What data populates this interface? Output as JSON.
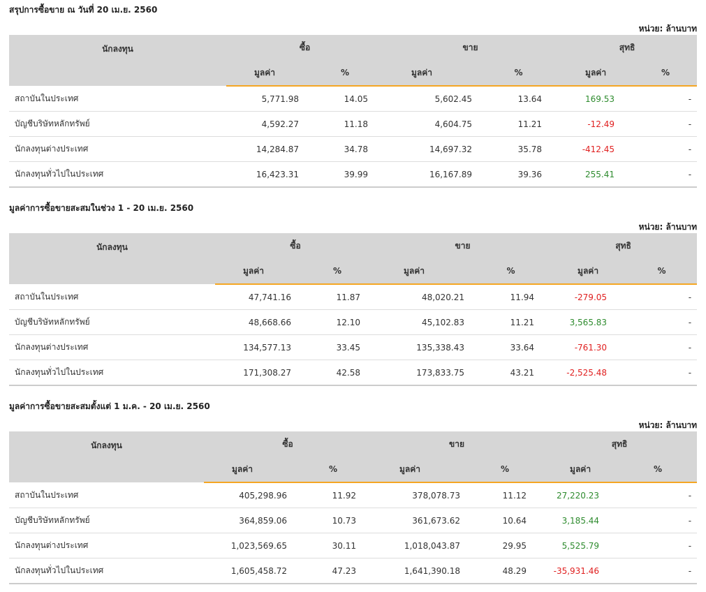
{
  "unit_label": "หน่วย: ล้านบาท",
  "headers": {
    "investor": "นักลงทุน",
    "buy": "ซื้อ",
    "sell": "ขาย",
    "net": "สุทธิ",
    "value": "มูลค่า",
    "pct": "%"
  },
  "sections": [
    {
      "title": "สรุปการซื้อขาย ณ วันที่ 20 เม.ย. 2560",
      "rows": [
        {
          "name": "สถาบันในประเทศ",
          "buy_value": "5,771.98",
          "buy_pct": "14.05",
          "sell_value": "5,602.45",
          "sell_pct": "13.64",
          "net_value": "169.53",
          "net_pct": "-",
          "net_sign": "pos"
        },
        {
          "name": "บัญชีบริษัทหลักทรัพย์",
          "buy_value": "4,592.27",
          "buy_pct": "11.18",
          "sell_value": "4,604.75",
          "sell_pct": "11.21",
          "net_value": "-12.49",
          "net_pct": "-",
          "net_sign": "neg"
        },
        {
          "name": "นักลงทุนต่างประเทศ",
          "buy_value": "14,284.87",
          "buy_pct": "34.78",
          "sell_value": "14,697.32",
          "sell_pct": "35.78",
          "net_value": "-412.45",
          "net_pct": "-",
          "net_sign": "neg"
        },
        {
          "name": "นักลงทุนทั่วไปในประเทศ",
          "buy_value": "16,423.31",
          "buy_pct": "39.99",
          "sell_value": "16,167.89",
          "sell_pct": "39.36",
          "net_value": "255.41",
          "net_pct": "-",
          "net_sign": "pos"
        }
      ]
    },
    {
      "title": "มูลค่าการซื้อขายสะสมในช่วง 1 - 20 เม.ย. 2560",
      "rows": [
        {
          "name": "สถาบันในประเทศ",
          "buy_value": "47,741.16",
          "buy_pct": "11.87",
          "sell_value": "48,020.21",
          "sell_pct": "11.94",
          "net_value": "-279.05",
          "net_pct": "-",
          "net_sign": "neg"
        },
        {
          "name": "บัญชีบริษัทหลักทรัพย์",
          "buy_value": "48,668.66",
          "buy_pct": "12.10",
          "sell_value": "45,102.83",
          "sell_pct": "11.21",
          "net_value": "3,565.83",
          "net_pct": "-",
          "net_sign": "pos"
        },
        {
          "name": "นักลงทุนต่างประเทศ",
          "buy_value": "134,577.13",
          "buy_pct": "33.45",
          "sell_value": "135,338.43",
          "sell_pct": "33.64",
          "net_value": "-761.30",
          "net_pct": "-",
          "net_sign": "neg"
        },
        {
          "name": "นักลงทุนทั่วไปในประเทศ",
          "buy_value": "171,308.27",
          "buy_pct": "42.58",
          "sell_value": "173,833.75",
          "sell_pct": "43.21",
          "net_value": "-2,525.48",
          "net_pct": "-",
          "net_sign": "neg"
        }
      ]
    },
    {
      "title": "มูลค่าการซื้อขายสะสมตั้งแต่ 1 ม.ค. - 20 เม.ย. 2560",
      "rows": [
        {
          "name": "สถาบันในประเทศ",
          "buy_value": "405,298.96",
          "buy_pct": "11.92",
          "sell_value": "378,078.73",
          "sell_pct": "11.12",
          "net_value": "27,220.23",
          "net_pct": "-",
          "net_sign": "pos"
        },
        {
          "name": "บัญชีบริษัทหลักทรัพย์",
          "buy_value": "364,859.06",
          "buy_pct": "10.73",
          "sell_value": "361,673.62",
          "sell_pct": "10.64",
          "net_value": "3,185.44",
          "net_pct": "-",
          "net_sign": "pos"
        },
        {
          "name": "นักลงทุนต่างประเทศ",
          "buy_value": "1,023,569.65",
          "buy_pct": "30.11",
          "sell_value": "1,018,043.87",
          "sell_pct": "29.95",
          "net_value": "5,525.79",
          "net_pct": "-",
          "net_sign": "pos"
        },
        {
          "name": "นักลงทุนทั่วไปในประเทศ",
          "buy_value": "1,605,458.72",
          "buy_pct": "47.23",
          "sell_value": "1,641,390.18",
          "sell_pct": "48.29",
          "net_value": "-35,931.46",
          "net_pct": "-",
          "net_sign": "neg"
        }
      ]
    }
  ]
}
